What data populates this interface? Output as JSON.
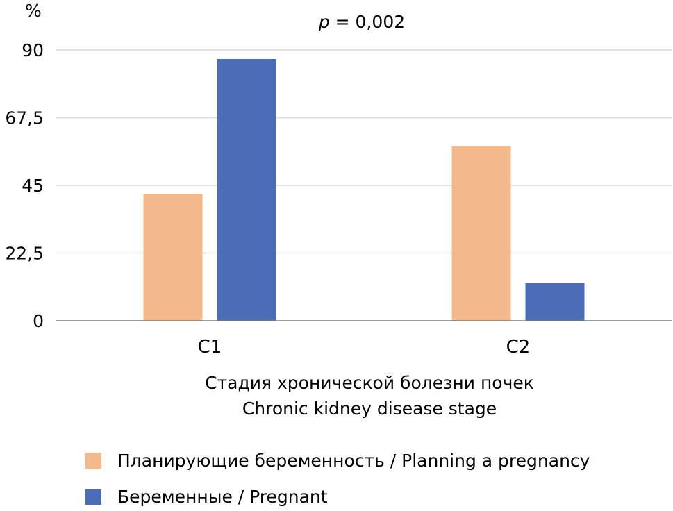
{
  "chart_data": {
    "type": "bar",
    "ylabel": "%",
    "annotation": {
      "p_symbol": "p",
      "rest": " = 0,002"
    },
    "xlabel_lines": [
      "Стадия хронической болезни почек",
      "Chronic kidney disease stage"
    ],
    "categories": [
      "C1",
      "C2"
    ],
    "ylim": [
      0,
      90
    ],
    "yticks": [
      "0",
      "22,5",
      "45",
      "67,5",
      "90"
    ],
    "ytick_values": [
      0,
      22.5,
      45,
      67.5,
      90
    ],
    "grid": true,
    "legend_position": "bottom-left",
    "series": [
      {
        "name": "Планирующие беременность / Planning a pregnancy",
        "color": "#F4B98A",
        "values": [
          42,
          58
        ]
      },
      {
        "name": "Беременные / Pregnant",
        "color": "#4C6DB5",
        "values": [
          87,
          12.5
        ]
      }
    ]
  }
}
